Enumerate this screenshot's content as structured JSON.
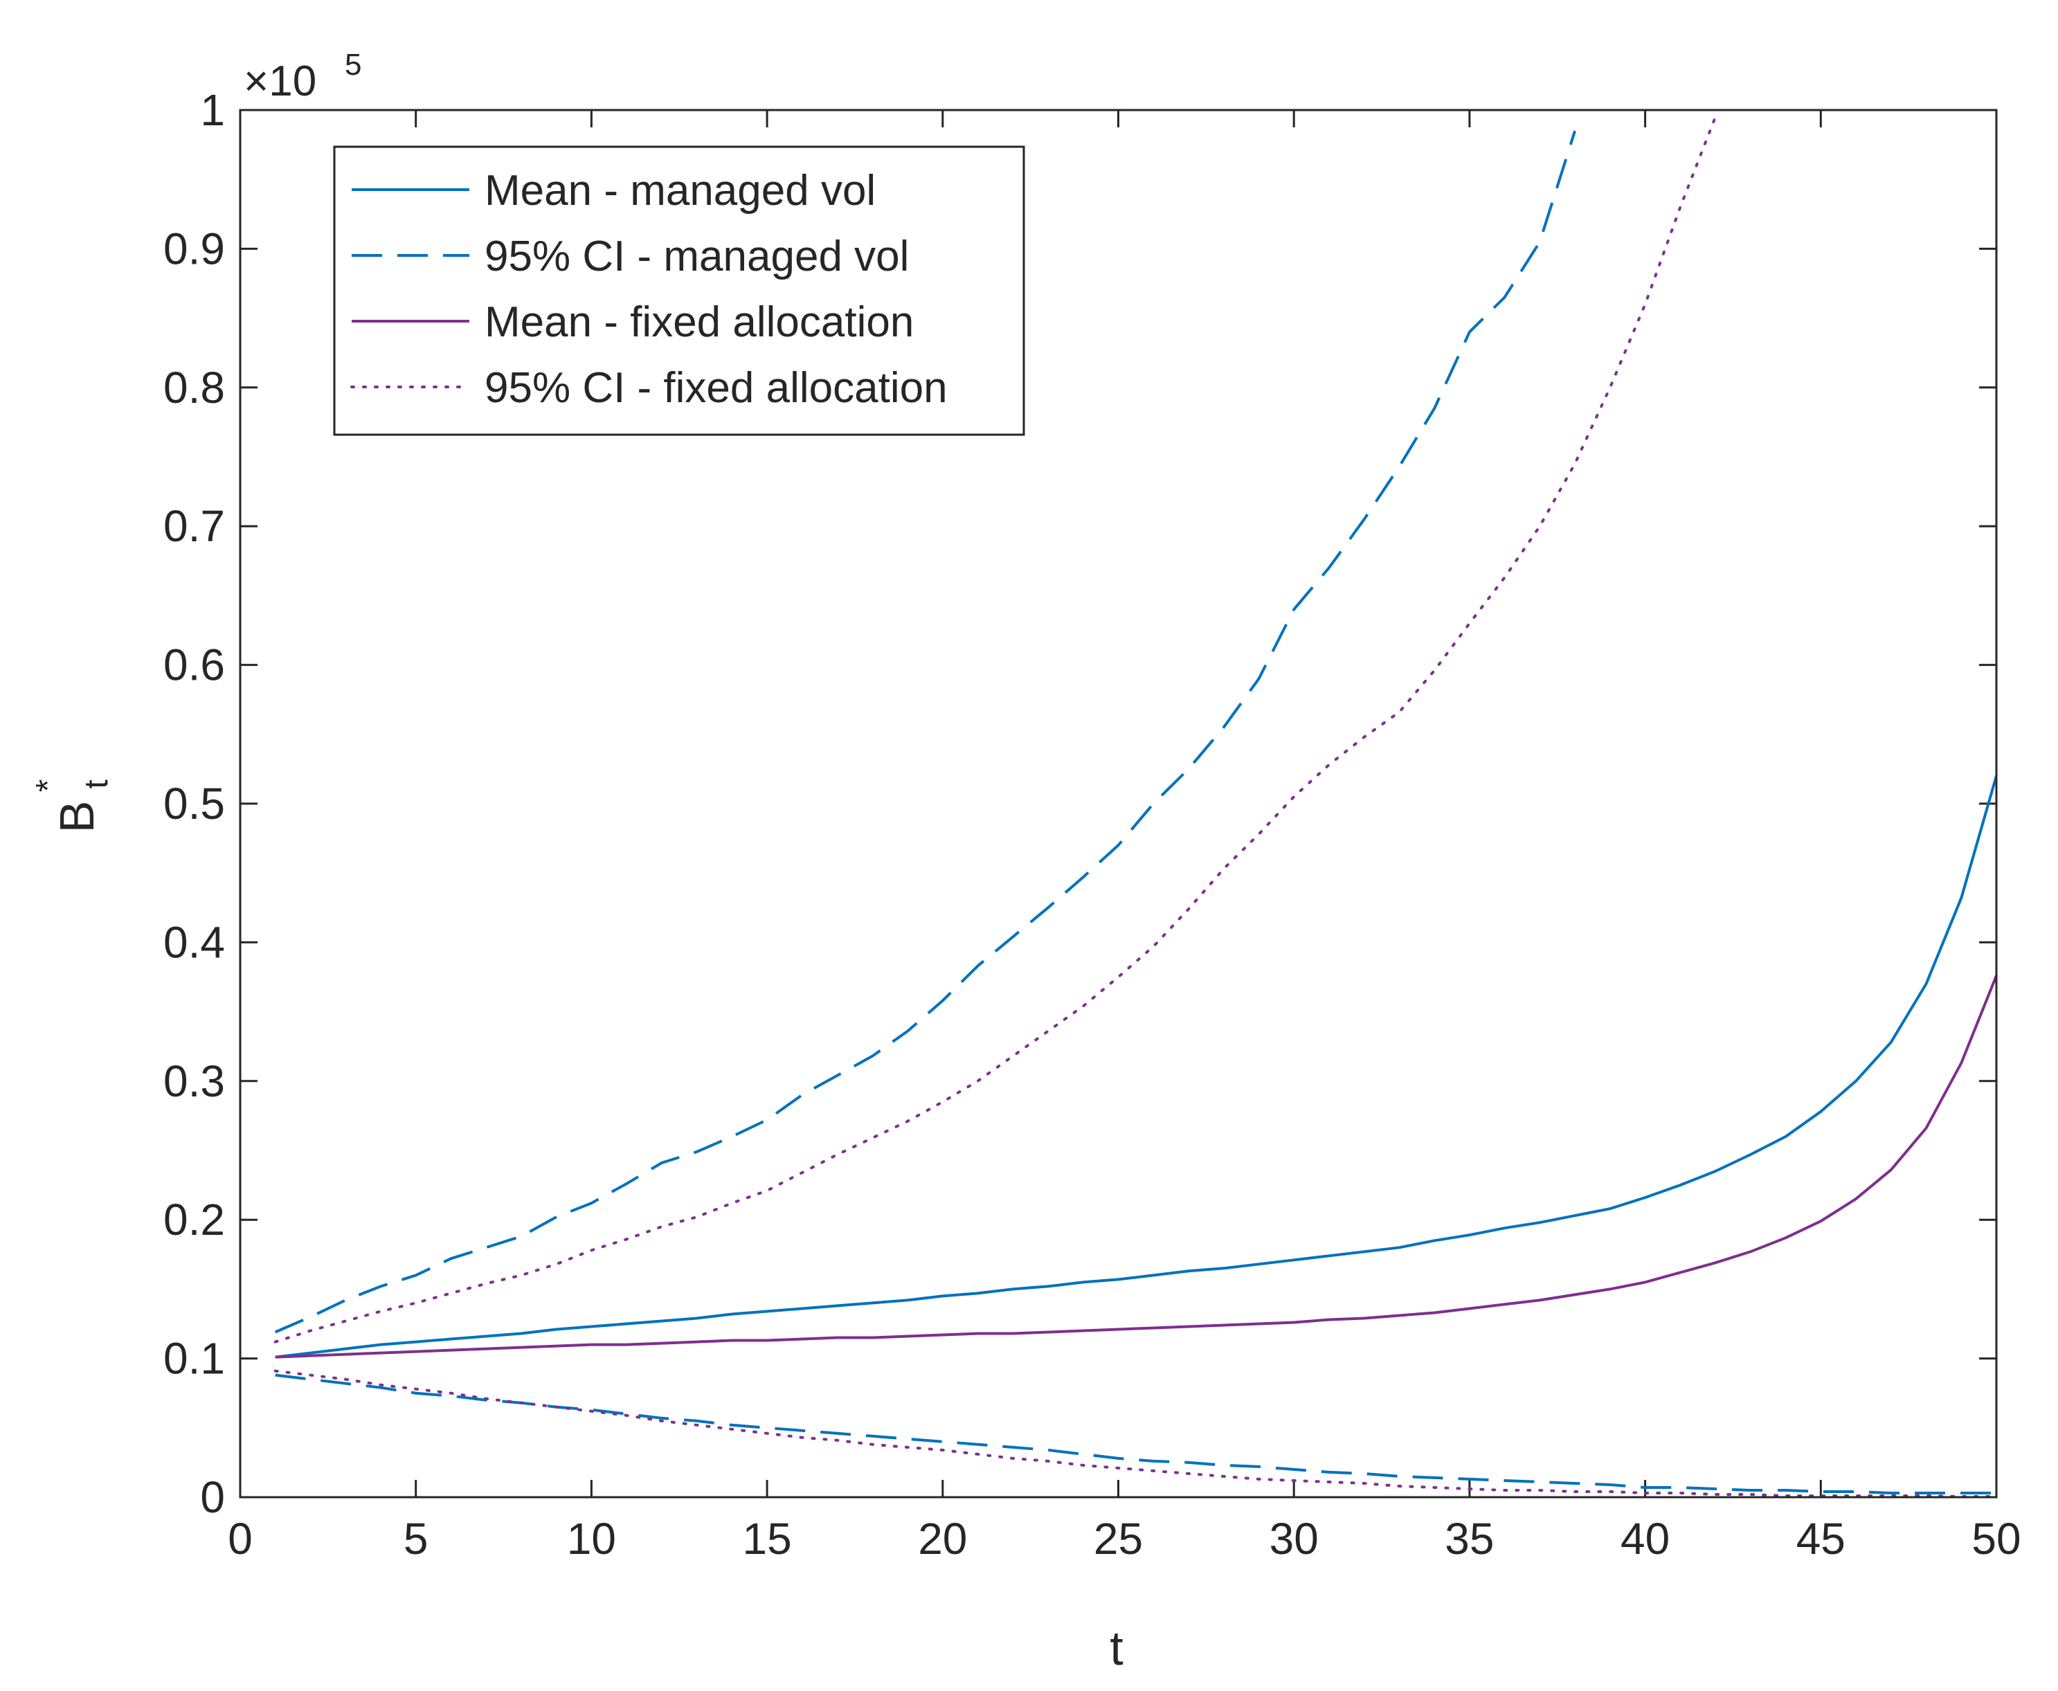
{
  "chart_data": {
    "type": "line",
    "xlabel": "t",
    "ylabel": "B",
    "ylabel_superscript": "*",
    "ylabel_subscript": "t",
    "y_multiplier": "×10",
    "y_exponent": "5",
    "x": [
      1,
      2,
      3,
      4,
      5,
      6,
      7,
      8,
      9,
      10,
      11,
      12,
      13,
      14,
      15,
      16,
      17,
      18,
      19,
      20,
      21,
      22,
      23,
      24,
      25,
      26,
      27,
      28,
      29,
      30,
      31,
      32,
      33,
      34,
      35,
      36,
      37,
      38,
      39,
      40,
      41,
      42,
      43,
      44,
      45,
      46,
      47,
      48,
      49,
      50
    ],
    "xlim": [
      0,
      50
    ],
    "xticks": [
      0,
      5,
      10,
      15,
      20,
      25,
      30,
      35,
      40,
      45,
      50
    ],
    "ylim": [
      0,
      1
    ],
    "yticks": [
      0,
      0.1,
      0.2,
      0.3,
      0.4,
      0.5,
      0.6,
      0.7,
      0.8,
      0.9,
      1
    ],
    "legend": "upper left",
    "series": [
      {
        "name": "Mean - managed vol",
        "color": "#0072BD",
        "line_style": "solid",
        "values": [
          0.101,
          0.104,
          0.107,
          0.11,
          0.112,
          0.114,
          0.116,
          0.118,
          0.121,
          0.123,
          0.125,
          0.127,
          0.129,
          0.132,
          0.134,
          0.136,
          0.138,
          0.14,
          0.142,
          0.145,
          0.147,
          0.15,
          0.152,
          0.155,
          0.157,
          0.16,
          0.163,
          0.165,
          0.168,
          0.171,
          0.174,
          0.177,
          0.18,
          0.185,
          0.189,
          0.194,
          0.198,
          0.203,
          0.208,
          0.216,
          0.225,
          0.235,
          0.247,
          0.26,
          0.278,
          0.3,
          0.328,
          0.37,
          0.432,
          0.52
        ]
      },
      {
        "name": "95% CI - managed vol",
        "color": "#0072BD",
        "line_style": "dashed",
        "values": [
          0.119,
          0.13,
          0.142,
          0.152,
          0.16,
          0.172,
          0.18,
          0.188,
          0.202,
          0.212,
          0.226,
          0.241,
          0.249,
          0.26,
          0.272,
          0.29,
          0.304,
          0.318,
          0.336,
          0.358,
          0.383,
          0.404,
          0.425,
          0.447,
          0.47,
          0.5,
          0.525,
          0.555,
          0.59,
          0.64,
          0.67,
          0.705,
          0.743,
          0.785,
          0.84,
          0.865,
          0.905,
          0.985,
          null,
          null,
          null,
          null,
          null,
          null,
          null,
          null,
          null,
          null,
          null,
          null
        ]
      },
      {
        "name": "Mean - fixed allocation",
        "color": "#7E2F8E",
        "line_style": "solid",
        "values": [
          0.101,
          0.102,
          0.103,
          0.104,
          0.105,
          0.106,
          0.107,
          0.108,
          0.109,
          0.11,
          0.11,
          0.111,
          0.112,
          0.113,
          0.113,
          0.114,
          0.115,
          0.115,
          0.116,
          0.117,
          0.118,
          0.118,
          0.119,
          0.12,
          0.121,
          0.122,
          0.123,
          0.124,
          0.125,
          0.126,
          0.128,
          0.129,
          0.131,
          0.133,
          0.136,
          0.139,
          0.142,
          0.146,
          0.15,
          0.155,
          0.162,
          0.169,
          0.177,
          0.187,
          0.199,
          0.215,
          0.236,
          0.266,
          0.313,
          0.376
        ]
      },
      {
        "name": "95% CI - fixed allocation",
        "color": "#7E2F8E",
        "line_style": "dotted",
        "values": [
          0.112,
          0.12,
          0.127,
          0.134,
          0.14,
          0.147,
          0.154,
          0.16,
          0.168,
          0.178,
          0.186,
          0.195,
          0.202,
          0.212,
          0.221,
          0.234,
          0.247,
          0.259,
          0.271,
          0.285,
          0.3,
          0.318,
          0.336,
          0.354,
          0.375,
          0.397,
          0.424,
          0.453,
          0.478,
          0.505,
          0.528,
          0.548,
          0.566,
          0.596,
          0.63,
          0.663,
          0.7,
          0.745,
          0.8,
          0.86,
          0.93,
          0.995,
          null,
          null,
          null,
          null,
          null,
          null,
          null,
          null
        ]
      },
      {
        "name": null,
        "color": "#0072BD",
        "line_style": "dashed",
        "values": [
          0.088,
          0.085,
          0.082,
          0.079,
          0.075,
          0.073,
          0.07,
          0.068,
          0.065,
          0.063,
          0.06,
          0.057,
          0.055,
          0.052,
          0.05,
          0.048,
          0.046,
          0.044,
          0.042,
          0.04,
          0.038,
          0.036,
          0.034,
          0.031,
          0.028,
          0.026,
          0.025,
          0.023,
          0.022,
          0.02,
          0.018,
          0.017,
          0.015,
          0.014,
          0.013,
          0.012,
          0.011,
          0.01,
          0.009,
          0.007,
          0.007,
          0.006,
          0.005,
          0.005,
          0.004,
          0.004,
          0.003,
          0.003,
          0.003,
          0.003
        ]
      },
      {
        "name": null,
        "color": "#7E2F8E",
        "line_style": "dotted",
        "values": [
          0.091,
          0.088,
          0.085,
          0.081,
          0.078,
          0.075,
          0.071,
          0.068,
          0.065,
          0.062,
          0.059,
          0.055,
          0.052,
          0.049,
          0.046,
          0.043,
          0.041,
          0.038,
          0.036,
          0.034,
          0.031,
          0.028,
          0.026,
          0.023,
          0.021,
          0.019,
          0.017,
          0.015,
          0.013,
          0.012,
          0.011,
          0.01,
          0.008,
          0.007,
          0.006,
          0.005,
          0.005,
          0.004,
          0.004,
          0.003,
          0.003,
          0.002,
          0.002,
          0.001,
          0.001,
          0.001,
          0.001,
          0.001,
          0.0005,
          0.0005
        ]
      }
    ]
  }
}
